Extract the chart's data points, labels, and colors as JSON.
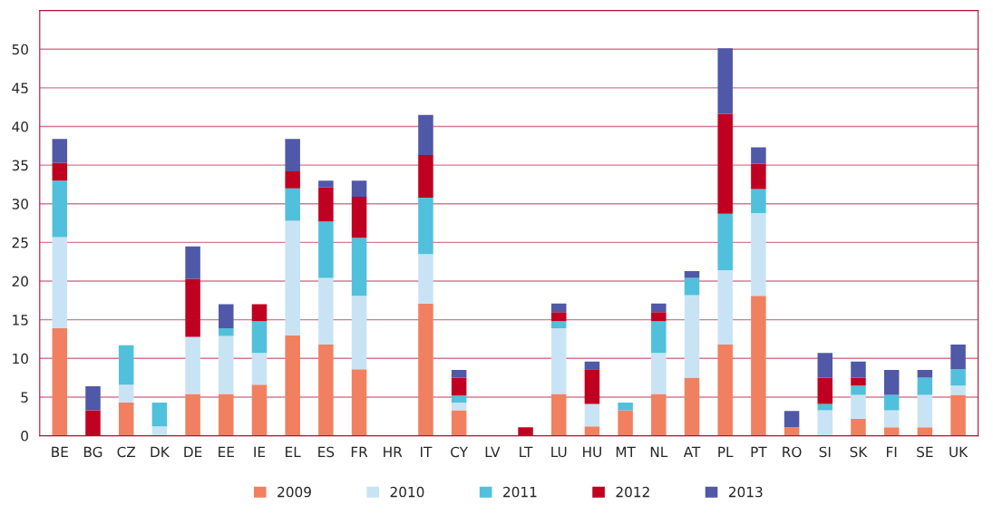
{
  "chart_data": {
    "type": "bar",
    "stacked": true,
    "categories": [
      "BE",
      "BG",
      "CZ",
      "DK",
      "DE",
      "EE",
      "IE",
      "EL",
      "ES",
      "FR",
      "HR",
      "IT",
      "CY",
      "LV",
      "LT",
      "LU",
      "HU",
      "MT",
      "NL",
      "AT",
      "PL",
      "PT",
      "RO",
      "SI",
      "SK",
      "FI",
      "SE",
      "UK"
    ],
    "series": [
      {
        "name": "2009",
        "color": "#f08060",
        "values": [
          13.9,
          0,
          4.3,
          0,
          5.4,
          5.4,
          6.6,
          13.0,
          11.8,
          8.6,
          0,
          17.1,
          3.3,
          0,
          0,
          5.4,
          1.2,
          3.3,
          5.4,
          7.5,
          11.8,
          18.1,
          1.1,
          0,
          2.2,
          1.1,
          1.1,
          5.3
        ]
      },
      {
        "name": "2010",
        "color": "#c8e4f4",
        "values": [
          11.8,
          0,
          2.3,
          1.2,
          7.4,
          7.5,
          4.1,
          14.8,
          8.6,
          9.5,
          0,
          6.4,
          1.0,
          0,
          0,
          8.5,
          2.9,
          0,
          5.3,
          10.7,
          9.6,
          10.7,
          0,
          3.3,
          3.1,
          2.2,
          4.2,
          1.2
        ]
      },
      {
        "name": "2011",
        "color": "#50c0dc",
        "values": [
          7.3,
          0,
          5.1,
          3.1,
          0,
          1.0,
          4.1,
          4.2,
          7.3,
          7.5,
          0,
          7.3,
          0.9,
          0,
          0,
          0.9,
          0,
          1.0,
          4.1,
          2.2,
          7.3,
          3.1,
          0,
          0.8,
          1.2,
          2.0,
          2.2,
          2.1
        ]
      },
      {
        "name": "2012",
        "color": "#c00020",
        "values": [
          2.3,
          3.3,
          0,
          0,
          7.5,
          0,
          2.2,
          2.2,
          4.4,
          5.3,
          0,
          5.5,
          2.3,
          0,
          1.1,
          1.2,
          4.5,
          0,
          1.2,
          0,
          12.9,
          3.3,
          0,
          3.4,
          1.0,
          0,
          0,
          0
        ]
      },
      {
        "name": "2013",
        "color": "#5058a8",
        "values": [
          3.1,
          3.1,
          0,
          0,
          4.2,
          3.1,
          0,
          4.2,
          0.9,
          2.1,
          0,
          5.2,
          1.0,
          0,
          0,
          1.1,
          1.0,
          0,
          1.1,
          0.9,
          8.5,
          2.1,
          2.1,
          3.2,
          2.1,
          3.2,
          1.0,
          3.2
        ]
      }
    ],
    "ylim": [
      0,
      55
    ],
    "yticks": [
      0,
      5,
      10,
      15,
      20,
      25,
      30,
      35,
      40,
      45,
      50
    ],
    "grid": "y",
    "legend": "bottom"
  }
}
